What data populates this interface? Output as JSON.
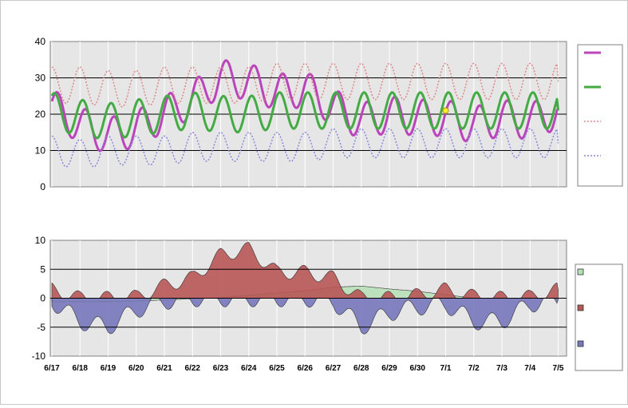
{
  "chart_data": [
    {
      "type": "line",
      "ylim": [
        0,
        40
      ],
      "yticks": [
        "0",
        "10",
        "20",
        "30",
        "40"
      ],
      "x": [
        "6/17",
        "6/18",
        "6/19",
        "6/20",
        "6/21",
        "6/22",
        "6/23",
        "6/24",
        "6/25",
        "6/26",
        "6/27",
        "6/28",
        "6/29",
        "6/30",
        "7/1",
        "7/2",
        "7/3",
        "7/4",
        "7/5"
      ],
      "legend_placement": "right",
      "grid": true,
      "series": [
        {
          "color": "#bb44bb",
          "style": "solid-thick",
          "values": [
            22,
            17,
            14,
            16,
            20,
            24,
            30,
            29,
            26,
            27,
            22,
            18,
            20,
            19,
            19,
            17,
            19,
            18,
            21
          ]
        },
        {
          "color": "#44aa44",
          "style": "solid-thick",
          "values": [
            21,
            19,
            18,
            19,
            20,
            21,
            20,
            20,
            21,
            21,
            21,
            21,
            21,
            21,
            21,
            21,
            21,
            21,
            21
          ]
        },
        {
          "color": "#dd8888",
          "style": "dotted",
          "values": [
            28,
            28,
            27,
            27,
            28,
            28,
            28,
            28,
            29,
            29,
            29,
            29,
            29,
            29,
            29,
            29,
            29,
            29,
            29
          ]
        },
        {
          "color": "#8888dd",
          "style": "dotted",
          "values": [
            10,
            9,
            10,
            10,
            10,
            11,
            11,
            11,
            11,
            11,
            12,
            12,
            12,
            12,
            12,
            12,
            12,
            12,
            12
          ]
        }
      ],
      "marker": {
        "x": "7/1",
        "y": 21,
        "color": "#ffee33"
      }
    },
    {
      "type": "area",
      "ylim": [
        -10,
        10
      ],
      "yticks": [
        "-10",
        "-5",
        "0",
        "5",
        "10"
      ],
      "x": [
        "6/17",
        "6/18",
        "6/19",
        "6/20",
        "6/21",
        "6/22",
        "6/23",
        "6/24",
        "6/25",
        "6/26",
        "6/27",
        "6/28",
        "6/29",
        "6/30",
        "7/1",
        "7/2",
        "7/3",
        "7/4",
        "7/5"
      ],
      "legend_placement": "right",
      "grid": true,
      "series": [
        {
          "color": "#b8e0b8",
          "values": [
            -0.6,
            -0.6,
            -0.6,
            -0.5,
            -0.3,
            -0.1,
            0.1,
            0.5,
            0.9,
            1.3,
            1.9,
            2.1,
            1.6,
            1.2,
            0.6,
            0,
            0,
            0,
            0
          ]
        },
        {
          "color": "#b85555",
          "values": [
            1.5,
            0,
            0,
            0.2,
            2.2,
            3.5,
            7.5,
            8.5,
            4.5,
            4.5,
            3.5,
            0,
            0,
            0.5,
            1.5,
            0.3,
            0,
            0.2,
            1.5
          ]
        },
        {
          "color": "#7777bb",
          "values": [
            -0.5,
            -4,
            -5,
            -2,
            -0.5,
            0,
            0,
            0,
            0,
            0,
            -0.5,
            -5,
            -2.5,
            -1.5,
            -1,
            -4,
            -4,
            -1,
            -0.3
          ]
        }
      ]
    }
  ]
}
